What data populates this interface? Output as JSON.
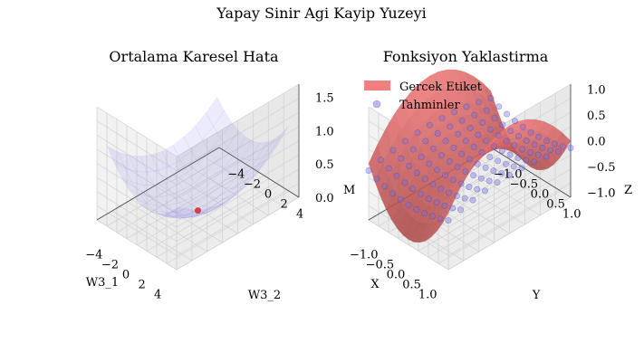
{
  "figure": {
    "suptitle": "Yapay Sinir Agi Kayip Yuzeyi"
  },
  "chart_data": [
    {
      "type": "surface3d",
      "title": "Ortalama Karesel Hata",
      "xlabel": "W3_1",
      "ylabel": "W3_2",
      "zlabel": "M",
      "x_ticks": [
        "−4",
        "−2",
        "0",
        "2",
        "4"
      ],
      "y_ticks": [
        "−4",
        "−2",
        "0",
        "2",
        "4"
      ],
      "z_ticks": [
        "0.0",
        "0.5",
        "1.0",
        "1.5"
      ],
      "xlim": [
        -5,
        5
      ],
      "ylim": [
        -5,
        5
      ],
      "zlim": [
        0,
        1.7
      ],
      "surface_color": "#9a9af0",
      "marker_color": "#d62728",
      "minimum_point": {
        "x": 0,
        "y": 0,
        "z": 0.08
      },
      "grid": true
    },
    {
      "type": "surface3d",
      "title": "Fonksiyon Yaklastirma",
      "xlabel": "X",
      "ylabel": "Y",
      "zlabel": "Z",
      "x_ticks": [
        "−1.0",
        "−0.5",
        "0.0",
        "0.5",
        "1.0"
      ],
      "y_ticks": [
        "−1.0",
        "−0.5",
        "0.0",
        "0.5",
        "1.0"
      ],
      "z_ticks": [
        "−1.0",
        "−0.5",
        "0.0",
        "0.5",
        "1.0"
      ],
      "xlim": [
        -1,
        1
      ],
      "ylim": [
        -1,
        1
      ],
      "zlim": [
        -1.1,
        1.1
      ],
      "series": [
        {
          "name": "Gercek Etiket",
          "kind": "surface",
          "color": "#f08080"
        },
        {
          "name": "Tahminler",
          "kind": "scatter",
          "color": "#7070e0"
        }
      ],
      "legend": "top-left",
      "grid": true
    }
  ]
}
